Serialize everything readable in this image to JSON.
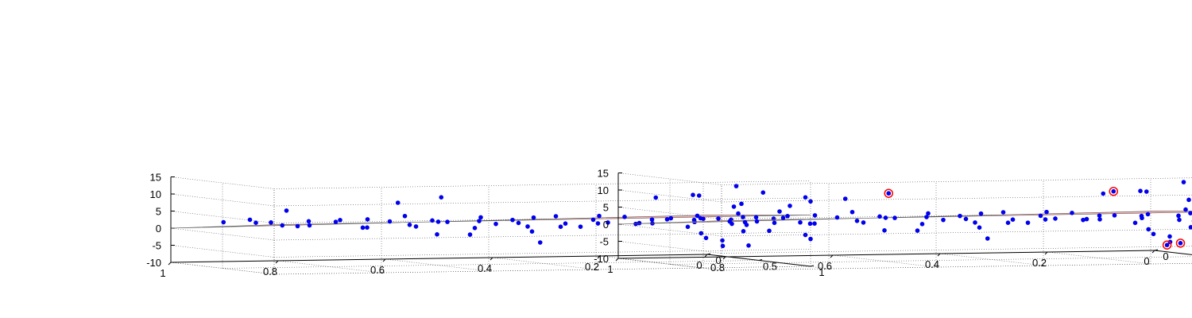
{
  "chart_data": [
    {
      "type": "scatter",
      "title": "",
      "xlabel": "",
      "ylabel": "",
      "zlabel": "",
      "x_ticks": [
        "1",
        "0.8",
        "0.6",
        "0.4",
        "0.2",
        "0"
      ],
      "y_ticks": [
        "0",
        "0.5",
        "1"
      ],
      "z_ticks": [
        "15",
        "10",
        "5",
        "0",
        "-5",
        "-10"
      ],
      "zlim": [
        -10,
        15
      ],
      "grid": true,
      "plane_color": "#ffb3b3",
      "point_color": "#0000ee",
      "points": [
        {
          "x": 0.95,
          "y": 0.25,
          "z": 2.5
        },
        {
          "x": 0.92,
          "y": 0.35,
          "z": 3.5
        },
        {
          "x": 0.9,
          "y": 0.45,
          "z": 3.0
        },
        {
          "x": 0.88,
          "y": 0.2,
          "z": 2.0
        },
        {
          "x": 0.85,
          "y": 0.3,
          "z": 1.5
        },
        {
          "x": 0.86,
          "y": 0.5,
          "z": 2.0
        },
        {
          "x": 0.82,
          "y": 0.4,
          "z": 3.0
        },
        {
          "x": 0.8,
          "y": 0.6,
          "z": 4.0
        },
        {
          "x": 0.78,
          "y": 0.2,
          "z": 1.0
        },
        {
          "x": 0.76,
          "y": 0.35,
          "z": 2.5
        },
        {
          "x": 0.74,
          "y": 0.55,
          "z": 1.5
        },
        {
          "x": 0.72,
          "y": 0.45,
          "z": 3.5
        },
        {
          "x": 0.7,
          "y": 0.3,
          "z": 0.5
        },
        {
          "x": 0.68,
          "y": 0.65,
          "z": 2.5
        },
        {
          "x": 0.66,
          "y": 0.5,
          "z": 4.5
        },
        {
          "x": 0.64,
          "y": 0.25,
          "z": 2.0
        },
        {
          "x": 0.62,
          "y": 0.4,
          "z": 1.0
        },
        {
          "x": 0.6,
          "y": 0.6,
          "z": 3.0
        },
        {
          "x": 0.58,
          "y": 0.35,
          "z": 2.5
        },
        {
          "x": 0.56,
          "y": 0.7,
          "z": 3.5
        },
        {
          "x": 0.54,
          "y": 0.2,
          "z": 1.5
        },
        {
          "x": 0.52,
          "y": 0.45,
          "z": 0.5
        },
        {
          "x": 0.5,
          "y": 0.55,
          "z": 2.0
        },
        {
          "x": 0.48,
          "y": 0.3,
          "z": 3.0
        },
        {
          "x": 0.46,
          "y": 0.65,
          "z": 1.5
        },
        {
          "x": 0.44,
          "y": 0.4,
          "z": 2.5
        },
        {
          "x": 0.42,
          "y": 0.5,
          "z": 3.5
        },
        {
          "x": 0.4,
          "y": 0.25,
          "z": 1.0
        },
        {
          "x": 0.38,
          "y": 0.6,
          "z": 2.0
        },
        {
          "x": 0.36,
          "y": 0.45,
          "z": 0.5
        },
        {
          "x": 0.34,
          "y": 0.3,
          "z": 3.0
        },
        {
          "x": 0.32,
          "y": 0.7,
          "z": 2.5
        },
        {
          "x": 0.3,
          "y": 0.5,
          "z": 1.5
        },
        {
          "x": 0.28,
          "y": 0.35,
          "z": 2.0
        },
        {
          "x": 0.26,
          "y": 0.55,
          "z": 3.5
        },
        {
          "x": 0.24,
          "y": 0.2,
          "z": 2.5
        },
        {
          "x": 0.22,
          "y": 0.45,
          "z": 1.0
        },
        {
          "x": 0.2,
          "y": 0.65,
          "z": 3.0
        },
        {
          "x": 0.18,
          "y": 0.4,
          "z": 2.0
        },
        {
          "x": 0.16,
          "y": 0.3,
          "z": 0.5
        },
        {
          "x": 0.14,
          "y": 0.6,
          "z": 2.5
        },
        {
          "x": 0.12,
          "y": 0.5,
          "z": 1.5
        },
        {
          "x": 0.1,
          "y": 0.75,
          "z": 3.0
        },
        {
          "x": 0.08,
          "y": 0.35,
          "z": 2.0
        },
        {
          "x": 0.06,
          "y": 0.55,
          "z": 1.0
        },
        {
          "x": 0.04,
          "y": 0.85,
          "z": 3.5
        },
        {
          "x": 0.02,
          "y": 0.45,
          "z": 2.5
        },
        {
          "x": 0.0,
          "y": 0.65,
          "z": 1.5
        },
        {
          "x": 0.0,
          "y": 0.9,
          "z": 2.5
        },
        {
          "x": 0.0,
          "y": 0.3,
          "z": 3.0
        },
        {
          "x": 0.1,
          "y": 0.9,
          "z": 2.0
        },
        {
          "x": 0.2,
          "y": 0.85,
          "z": 1.5
        },
        {
          "x": 0.3,
          "y": 0.9,
          "z": 3.0
        },
        {
          "x": 0.4,
          "y": 0.85,
          "z": 2.0
        },
        {
          "x": 0.5,
          "y": 0.9,
          "z": 1.0
        },
        {
          "x": 0.75,
          "y": 0.9,
          "z": 10.0
        },
        {
          "x": 0.65,
          "y": 0.8,
          "z": 11.0
        },
        {
          "x": 0.9,
          "y": 0.6,
          "z": 7.0
        },
        {
          "x": 0.25,
          "y": 0.8,
          "z": 10.0
        },
        {
          "x": 0.2,
          "y": 0.9,
          "z": 11.0
        },
        {
          "x": 0.15,
          "y": 0.7,
          "z": 10.0
        },
        {
          "x": 0.1,
          "y": 0.85,
          "z": 8.0
        },
        {
          "x": 0.05,
          "y": 0.8,
          "z": 11.0
        },
        {
          "x": 0.1,
          "y": 0.8,
          "z": 13.0
        },
        {
          "x": 0.0,
          "y": 0.95,
          "z": 10.0
        },
        {
          "x": 0.0,
          "y": 0.8,
          "z": 7.0
        },
        {
          "x": 0.0,
          "y": 0.7,
          "z": 5.0
        },
        {
          "x": 0.0,
          "y": 1.0,
          "z": 9.0
        },
        {
          "x": 0.6,
          "y": 0.5,
          "z": -1.0
        },
        {
          "x": 0.5,
          "y": 0.3,
          "z": -2.0
        },
        {
          "x": 0.35,
          "y": 0.2,
          "z": -5.0
        },
        {
          "x": 0.05,
          "y": 0.2,
          "z": -3.0
        },
        {
          "x": 0.02,
          "y": 0.25,
          "z": -5.0
        },
        {
          "x": 0.06,
          "y": 0.3,
          "z": -4.0
        },
        {
          "x": 0.0,
          "y": 0.15,
          "z": -7.0
        },
        {
          "x": 0.0,
          "y": 0.4,
          "z": -6.0
        },
        {
          "x": 0.0,
          "y": 0.35,
          "z": -2.0
        },
        {
          "x": 0.0,
          "y": 0.6,
          "z": -1.0
        },
        {
          "x": 0.0,
          "y": 0.95,
          "z": -1.0
        },
        {
          "x": 0.0,
          "y": 1.0,
          "z": -2.0
        }
      ]
    },
    {
      "type": "scatter",
      "title": "",
      "xlabel": "",
      "ylabel": "",
      "zlabel": "",
      "x_ticks": [
        "1",
        "0.8",
        "0.6",
        "0.4",
        "0.2",
        "0"
      ],
      "y_ticks": [
        "0",
        "0.5",
        "1"
      ],
      "z_ticks": [
        "15",
        "10",
        "5",
        "0",
        "-5",
        "-10"
      ],
      "zlim": [
        -10,
        15
      ],
      "grid": true,
      "plane_color": "#ffb3b3",
      "point_color": "#0000ee",
      "outlier_ring_color": "#ff0000",
      "outliers": [
        {
          "x": 0.65,
          "y": 0.8,
          "z": 11.0
        },
        {
          "x": 0.25,
          "y": 0.9,
          "z": 11.0
        },
        {
          "x": 0.1,
          "y": 0.95,
          "z": 13.0
        },
        {
          "x": 0.0,
          "y": 0.12,
          "z": -8.0
        },
        {
          "x": 0.0,
          "y": 0.25,
          "z": -7.0
        }
      ]
    }
  ]
}
